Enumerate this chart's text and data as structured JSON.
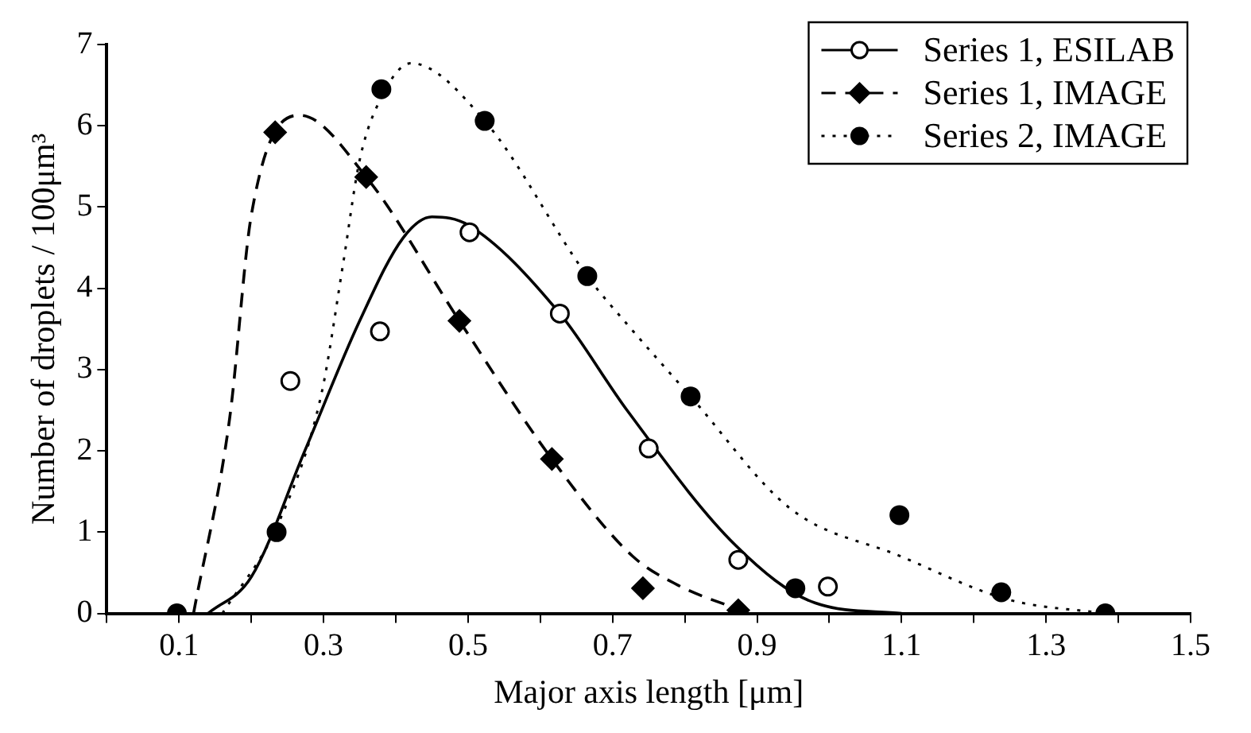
{
  "chart_data": {
    "type": "scatter",
    "xlabel": "Major axis length [μm]",
    "ylabel": "Number of droplets / 100μm³",
    "xlim": [
      0,
      1.5
    ],
    "ylim": [
      0,
      7
    ],
    "xticks": [
      {
        "value": 0,
        "label": null
      },
      0.1,
      {
        "value": 0.2,
        "label": null
      },
      0.3,
      {
        "value": 0.4,
        "label": null
      },
      0.5,
      {
        "value": 0.6,
        "label": null
      },
      0.7,
      {
        "value": 0.8,
        "label": null
      },
      0.9,
      {
        "value": 1.0,
        "label": null
      },
      1.1,
      {
        "value": 1.2,
        "label": null
      },
      1.3,
      {
        "value": 1.4,
        "label": null
      },
      1.5
    ],
    "yticks": [
      0,
      1,
      2,
      3,
      4,
      5,
      6,
      7
    ],
    "grid": false,
    "legend": "top right",
    "series": [
      {
        "name": "Series 1, ESILAB",
        "type": "scatter",
        "marker": "circle",
        "color": "#000000",
        "x": [
          0.254,
          0.378,
          0.502,
          0.627,
          0.75,
          0.874,
          0.998
        ],
        "values": [
          2.86,
          3.47,
          4.69,
          3.69,
          2.03,
          0.66,
          0.33
        ]
      },
      {
        "type": "line",
        "line_style": "solid",
        "marker": "none",
        "color": "#000000",
        "x": [
          0.14,
          0.2,
          0.274,
          0.35,
          0.41,
          0.45,
          0.5,
          0.627,
          0.72,
          0.87,
          0.98,
          1.1
        ],
        "values": [
          0,
          0.45,
          2.0,
          3.6,
          4.62,
          4.88,
          4.78,
          3.69,
          2.5,
          0.84,
          0.13,
          0
        ]
      },
      {
        "name": "Series 1, IMAGE",
        "type": "scatter",
        "marker": "diamond",
        "color": "#000000",
        "x": [
          0.233,
          0.359,
          0.488,
          0.616,
          0.742,
          0.874
        ],
        "values": [
          5.92,
          5.37,
          3.6,
          1.9,
          0.31,
          0.04
        ]
      },
      {
        "type": "line",
        "line_style": "dashed",
        "marker": "none",
        "color": "#000000",
        "x": [
          0.12,
          0.17,
          0.2,
          0.267,
          0.359,
          0.488,
          0.616,
          0.727,
          0.79,
          0.89
        ],
        "values": [
          0,
          2.4,
          4.9,
          6.13,
          5.37,
          3.6,
          1.9,
          0.71,
          0.35,
          0
        ]
      },
      {
        "name": "Series 2, IMAGE",
        "type": "scatter",
        "marker": "circle",
        "color": "#000000",
        "x": [
          0.097,
          0.235,
          0.38,
          0.523,
          0.665,
          0.808,
          0.953,
          1.097,
          1.238,
          1.382
        ],
        "values": [
          0,
          1.0,
          6.45,
          6.06,
          4.15,
          2.67,
          0.31,
          1.21,
          0.26,
          0
        ]
      },
      {
        "type": "line",
        "line_style": "dotted",
        "marker": "none",
        "color": "#000000",
        "x": [
          0.16,
          0.237,
          0.297,
          0.327,
          0.35,
          0.38,
          0.421,
          0.523,
          0.665,
          0.72,
          0.808,
          0.946,
          1.097,
          1.248,
          1.38
        ],
        "values": [
          0,
          1.1,
          2.7,
          4.3,
          5.58,
          6.35,
          6.77,
          6.06,
          4.15,
          3.56,
          2.67,
          1.29,
          0.71,
          0.17,
          0
        ]
      }
    ]
  }
}
